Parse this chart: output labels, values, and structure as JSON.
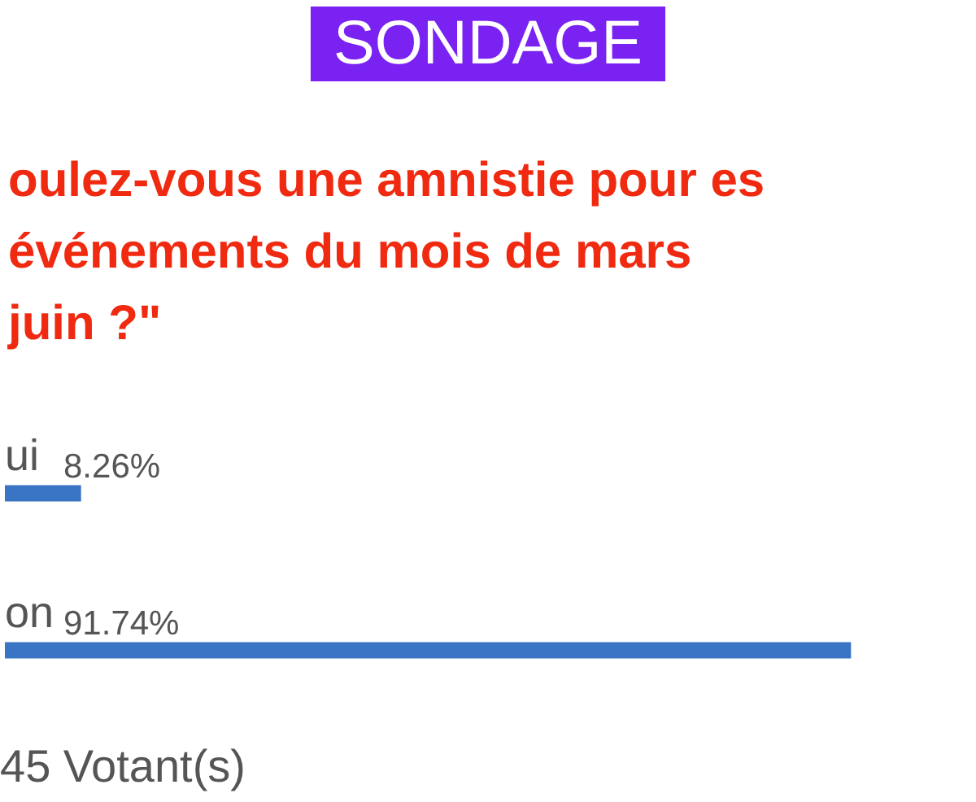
{
  "chart_data": {
    "type": "bar",
    "orientation": "horizontal",
    "title": "SONDAGE",
    "subtitle": "oulez-vous une amnistie pour es événements du mois de mars juin ?\"",
    "categories": [
      "ui",
      "on"
    ],
    "values": [
      8.26,
      91.74
    ],
    "value_labels": [
      "8.26%",
      "91.74%"
    ],
    "color": "#3a74c4",
    "annotations": [
      "45 Votant(s)"
    ],
    "tick_labels": "y"
  }
}
